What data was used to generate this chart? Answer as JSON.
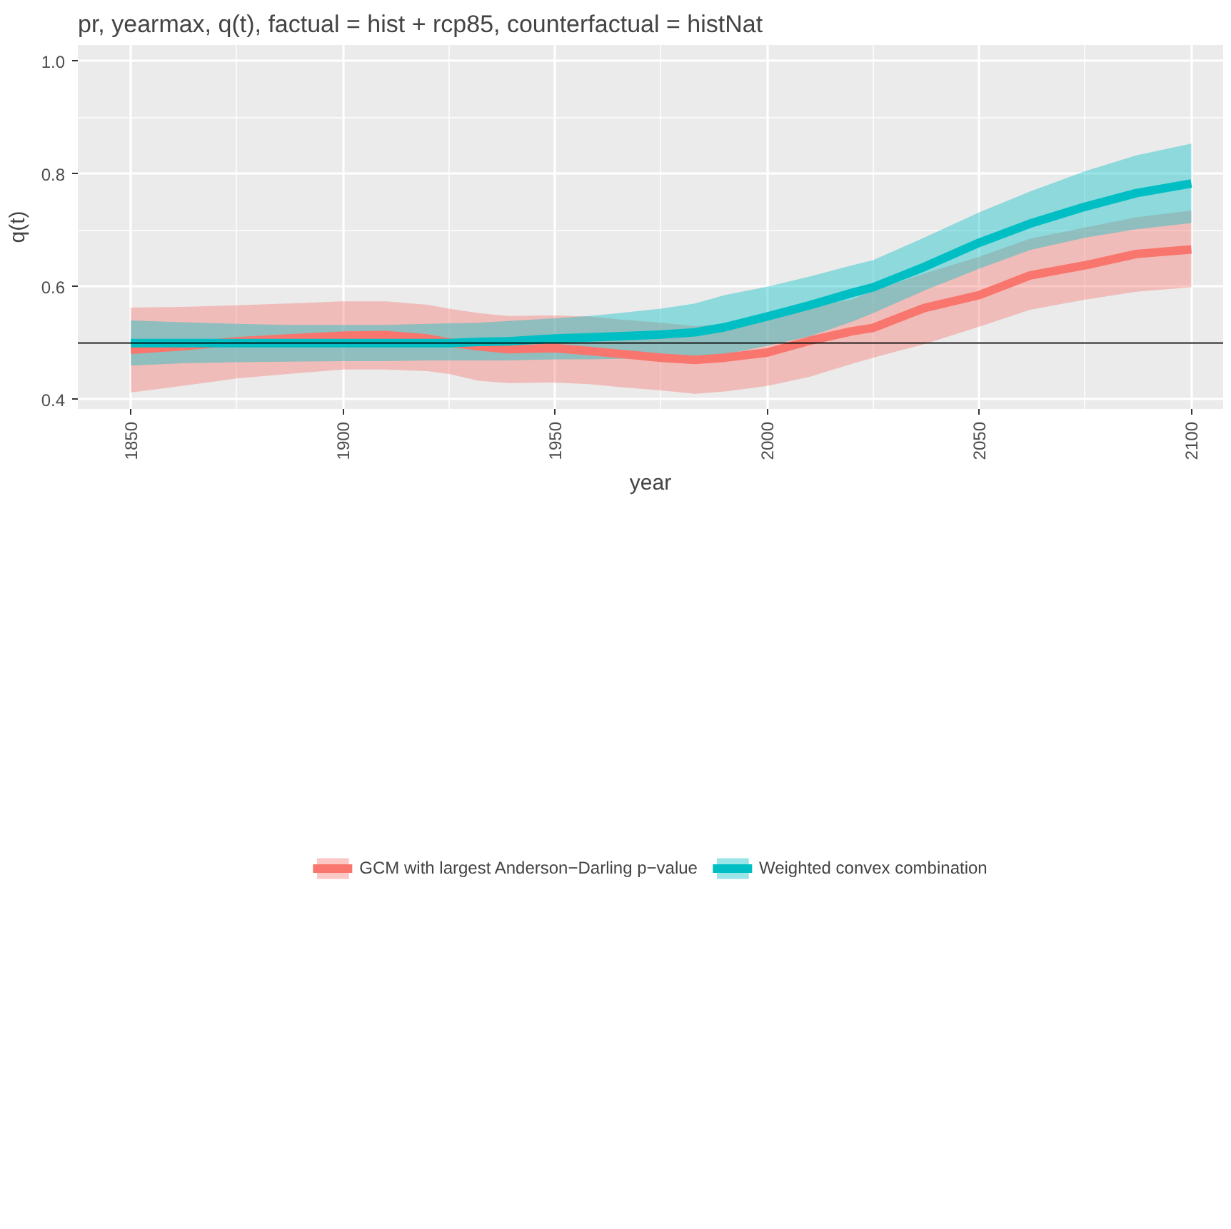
{
  "chart_data": {
    "type": "line",
    "title": "pr, yearmax, q(t), factual = hist + rcp85, counterfactual = histNat",
    "xlabel": "year",
    "ylabel": "q(t)",
    "x": [
      1850,
      1862,
      1875,
      1887,
      1900,
      1910,
      1920,
      1925,
      1932,
      1939,
      1950,
      1958,
      1965,
      1975,
      1983,
      1990,
      2000,
      2010,
      2020,
      2025,
      2037,
      2050,
      2062,
      2075,
      2087,
      2100
    ],
    "series": [
      {
        "name": "GCM with largest Anderson−Darling p−value",
        "color": "#f8766d",
        "values": [
          0.488,
          0.494,
          0.503,
          0.508,
          0.513,
          0.514,
          0.508,
          0.501,
          0.494,
          0.489,
          0.491,
          0.486,
          0.481,
          0.474,
          0.47,
          0.474,
          0.483,
          0.504,
          0.521,
          0.527,
          0.562,
          0.585,
          0.62,
          0.638,
          0.658,
          0.666
        ],
        "upper": [
          0.563,
          0.564,
          0.567,
          0.57,
          0.574,
          0.574,
          0.568,
          0.561,
          0.553,
          0.548,
          0.549,
          0.547,
          0.542,
          0.536,
          0.53,
          0.534,
          0.55,
          0.565,
          0.577,
          0.593,
          0.623,
          0.653,
          0.685,
          0.705,
          0.723,
          0.735
        ],
        "lower": [
          0.412,
          0.424,
          0.437,
          0.445,
          0.453,
          0.453,
          0.45,
          0.445,
          0.433,
          0.429,
          0.43,
          0.427,
          0.422,
          0.416,
          0.41,
          0.414,
          0.424,
          0.44,
          0.463,
          0.474,
          0.498,
          0.529,
          0.559,
          0.577,
          0.591,
          0.599
        ]
      },
      {
        "name": "Weighted convex combination",
        "color": "#00bfc4",
        "values": [
          0.5,
          0.5,
          0.5,
          0.5,
          0.5,
          0.5,
          0.5,
          0.5,
          0.502,
          0.503,
          0.508,
          0.51,
          0.512,
          0.515,
          0.519,
          0.528,
          0.547,
          0.567,
          0.589,
          0.599,
          0.635,
          0.678,
          0.712,
          0.742,
          0.766,
          0.783
        ],
        "upper": [
          0.54,
          0.537,
          0.534,
          0.532,
          0.532,
          0.532,
          0.534,
          0.535,
          0.536,
          0.539,
          0.544,
          0.548,
          0.553,
          0.561,
          0.57,
          0.585,
          0.6,
          0.618,
          0.638,
          0.647,
          0.687,
          0.732,
          0.769,
          0.805,
          0.833,
          0.854
        ],
        "lower": [
          0.46,
          0.464,
          0.466,
          0.467,
          0.468,
          0.468,
          0.469,
          0.469,
          0.469,
          0.469,
          0.471,
          0.471,
          0.472,
          0.474,
          0.474,
          0.48,
          0.495,
          0.512,
          0.538,
          0.553,
          0.593,
          0.632,
          0.665,
          0.687,
          0.702,
          0.713
        ]
      }
    ],
    "ref_lines": [
      {
        "axis": "y",
        "value": 0.5,
        "color": "#000000"
      }
    ],
    "xlim": [
      1837.5,
      2107.5
    ],
    "ylim": [
      0.383,
      1.029
    ],
    "xticks": [
      1850,
      1900,
      1950,
      2000,
      2050,
      2100
    ],
    "yticks": [
      0.4,
      0.6,
      0.8,
      {
        "value": 1.0,
        "label": "1.0"
      }
    ],
    "grid": true,
    "legend": "bottom",
    "line_style": "solid",
    "marker": "none"
  }
}
